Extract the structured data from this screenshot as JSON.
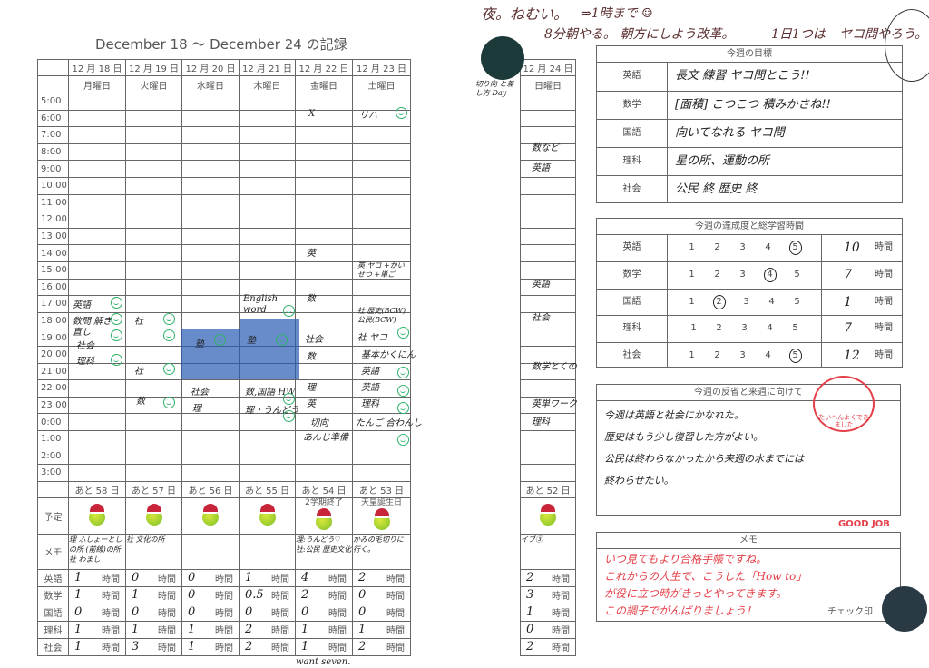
{
  "title": "December 18 ～ December 24 の記録",
  "days": [
    {
      "date": "12 月 18 日",
      "weekday": "月曜日",
      "countdown": "あと 58 日",
      "plan": "",
      "memo": "理 ふしょーとしの所 (前線)の所 社 わまし",
      "hours": [
        "1",
        "1",
        "0",
        "1",
        "1"
      ]
    },
    {
      "date": "12 月 19 日",
      "weekday": "火曜日",
      "countdown": "あと 57 日",
      "plan": "",
      "memo": "社 文化の所",
      "hours": [
        "0",
        "1",
        "0",
        "1",
        "3"
      ]
    },
    {
      "date": "12 月 20 日",
      "weekday": "水曜日",
      "countdown": "あと 56 日",
      "plan": "",
      "memo": "",
      "hours": [
        "0",
        "0",
        "0",
        "1",
        "1"
      ]
    },
    {
      "date": "12 月 21 日",
      "weekday": "木曜日",
      "countdown": "あと 55 日",
      "plan": "",
      "memo": "",
      "hours": [
        "1",
        "0.5",
        "0",
        "2",
        "2"
      ]
    },
    {
      "date": "12 月 22 日",
      "weekday": "金曜日",
      "countdown": "あと 54 日",
      "plan": "2学期終了",
      "memo": "理:うんどう♡ 社:公民 歴史文化",
      "hours": [
        "4",
        "2",
        "0",
        "1",
        "1"
      ]
    },
    {
      "date": "12 月 23 日",
      "weekday": "土曜日",
      "countdown": "あと 53 日",
      "plan": "天皇誕生日",
      "memo": "かみの毛切りに行く。",
      "hours": [
        "2",
        "0",
        "0",
        "1",
        "2"
      ]
    },
    {
      "date": "12 月 24 日",
      "weekday": "日曜日",
      "countdown": "あと 52 日",
      "plan": "",
      "memo": "イブ③",
      "hours": [
        "2",
        "3",
        "1",
        "0",
        "2"
      ]
    }
  ],
  "times": [
    "5:00",
    "6:00",
    "7:00",
    "8:00",
    "9:00",
    "10:00",
    "11:00",
    "12:00",
    "13:00",
    "14:00",
    "15:00",
    "16:00",
    "17:00",
    "18:00",
    "19:00",
    "20:00",
    "21:00",
    "22:00",
    "23:00",
    "0:00",
    "1:00",
    "2:00",
    "3:00"
  ],
  "row_labels": {
    "plan": "予定",
    "memo": "メモ"
  },
  "subjects": [
    "英語",
    "数学",
    "国語",
    "理科",
    "社会"
  ],
  "hours_unit": "時間",
  "notes": [
    "英語",
    "数問 解き直し",
    "社会",
    "理科",
    "社",
    "社",
    "数",
    "塾",
    "社会",
    "理",
    "English word",
    "塾",
    "数,国語 HW",
    "理・うんどう",
    "X",
    "英",
    "数",
    "社会",
    "数",
    "理",
    "英",
    "切向",
    "あんじ準備",
    "リハ",
    "英 ヤコ +かいせつ +単ご",
    "社 歴史(BCW) 公民(BCW)",
    "社 ヤコ",
    "基本かくにん",
    "英語",
    "英語",
    "理科",
    "たんご 合わんし",
    "数など",
    "英語",
    "英語",
    "社会",
    "数学とくの",
    "英単ワーク",
    "理科",
    "切り向 と差し方 Day",
    "want seven."
  ],
  "top_note": [
    "夜。ねむい。",
    "⇒1時まで ☺",
    "8分朝やる。 朝方にしよう改革。",
    "1日1つは",
    "ヤコ問やろう。"
  ],
  "goals": {
    "header": "今週の目標",
    "rows": [
      {
        "subject": "英語",
        "text": "長文 練習  ヤコ問とこう!!"
      },
      {
        "subject": "数学",
        "text": "[面積] こつこつ 積みかさね!!"
      },
      {
        "subject": "国語",
        "text": "向いてなれる ヤコ問"
      },
      {
        "subject": "理科",
        "text": "星の所、運動の所"
      },
      {
        "subject": "社会",
        "text": "公民 終 歴史 終"
      }
    ]
  },
  "achievement": {
    "header": "今週の達成度と総学習時間",
    "scale": [
      "1",
      "2",
      "3",
      "4",
      "5"
    ],
    "rows": [
      {
        "subject": "英語",
        "level": 5,
        "hours": "10"
      },
      {
        "subject": "数学",
        "level": 4,
        "hours": "7"
      },
      {
        "subject": "国語",
        "level": 2,
        "hours": "1"
      },
      {
        "subject": "理科",
        "level": null,
        "hours": "7"
      },
      {
        "subject": "社会",
        "level": 5,
        "hours": "12"
      }
    ],
    "unit": "時間"
  },
  "reflection": {
    "header": "今週の反省と来週に向けて",
    "lines": [
      "今週は英語と社会にかなれた。",
      "歴史はもう少し復習した方がよい。",
      "公民は終わらなかったから来週の水までには",
      "終わらせたい。"
    ]
  },
  "memo": {
    "header": "メモ",
    "lines": [
      "いつ見てもより合格手帳ですね。",
      "これからの人生で、こうした「How to」",
      "が役に立つ時がきっとやってきます。",
      "この調子でがんばりましょう！"
    ],
    "check_label": "チェック印"
  },
  "stamps": {
    "praise": "たいへんよくできました",
    "good_job": "GOOD JOB"
  },
  "colors": {
    "ink": "#222222",
    "teacher_red": "#e4404a",
    "highlight": "#2d5fb4",
    "smiley_green": "#2fb36a"
  }
}
